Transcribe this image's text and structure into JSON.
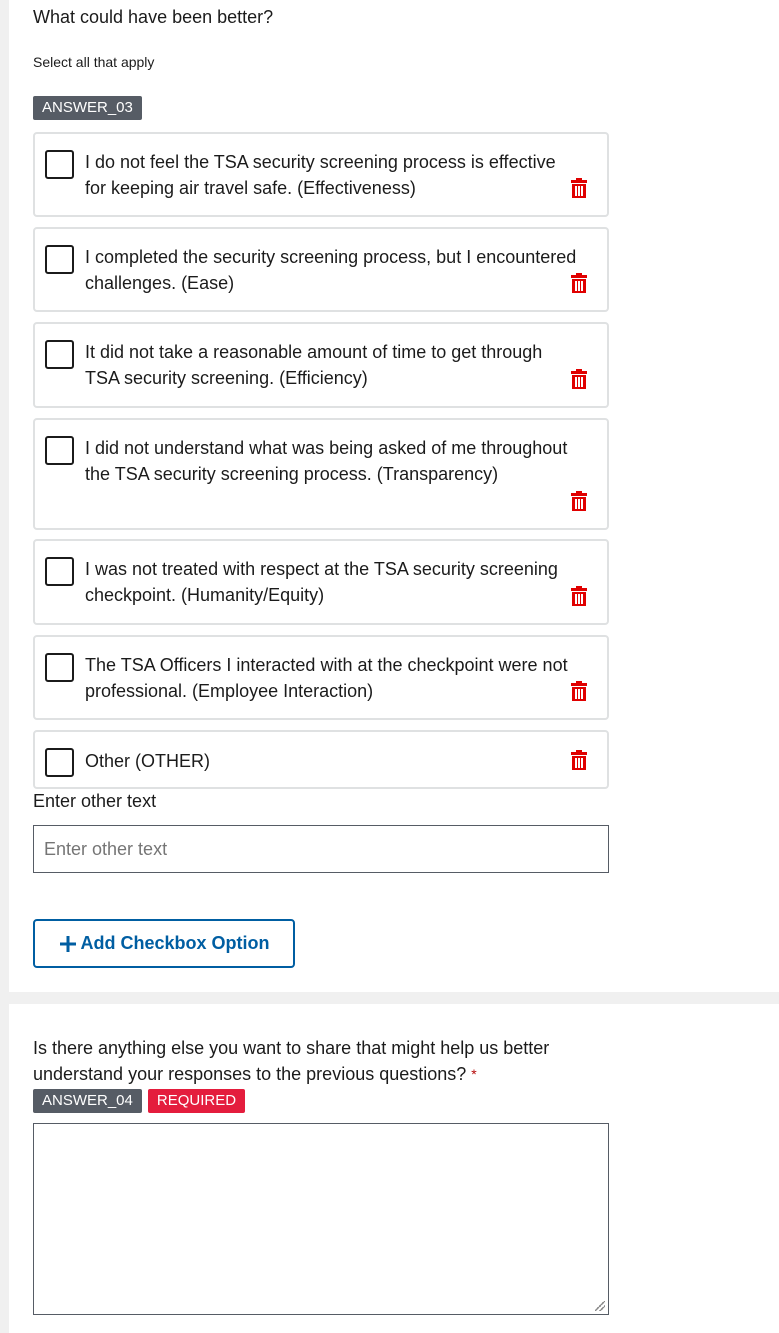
{
  "section1": {
    "question": "What could have been better?",
    "hint": "Select all that apply",
    "tag": "ANSWER_03",
    "options": [
      {
        "label": "I do not feel the TSA security screening process is effective for keeping air travel safe. (Effectiveness)",
        "checked": false
      },
      {
        "label": "I completed the security screening process, but I encountered challenges. (Ease)",
        "checked": false
      },
      {
        "label": "It did not take a reasonable amount of time to get through TSA security screening. (Efficiency)",
        "checked": false
      },
      {
        "label": "I did not understand what was being asked of me throughout the TSA security screening process. (Transparency)",
        "checked": false
      },
      {
        "label": "I was not treated with respect at the TSA security screening checkpoint. (Humanity/Equity)",
        "checked": false
      },
      {
        "label": "The TSA Officers I interacted with at the checkpoint were not professional. (Employee Interaction)",
        "checked": false
      },
      {
        "label": "Other (OTHER)",
        "checked": false
      }
    ],
    "other_label": "Enter other text",
    "other_placeholder": "Enter other text",
    "other_value": "",
    "add_button": "Add Checkbox Option",
    "add_icon": "plus-icon",
    "delete_icon": "trash-icon"
  },
  "section2": {
    "question": "Is there anything else you want to share that might help us better understand your responses to the previous questions?",
    "required_mark": "*",
    "tag": "ANSWER_04",
    "required_badge": "REQUIRED",
    "response_value": ""
  },
  "colors": {
    "primary": "#005ea2",
    "danger": "#e41d3d",
    "tag": "#565c65",
    "trash": "#e00000"
  }
}
